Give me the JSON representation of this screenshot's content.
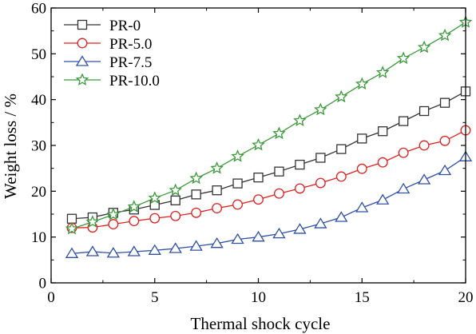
{
  "chart_data": {
    "type": "line",
    "xlabel": "Thermal shock cycle",
    "ylabel": "Weight loss / %",
    "xlim": [
      0,
      20
    ],
    "ylim": [
      0,
      60
    ],
    "xticks": [
      "0",
      "5",
      "10",
      "15",
      "20"
    ],
    "yticks": [
      "0",
      "10",
      "20",
      "30",
      "40",
      "50",
      "60"
    ],
    "grid": false,
    "legend_position": "top-left",
    "x": [
      1,
      2,
      3,
      4,
      5,
      6,
      7,
      8,
      9,
      10,
      11,
      12,
      13,
      14,
      15,
      16,
      17,
      18,
      19,
      20
    ],
    "series": [
      {
        "name": "PR-0",
        "color": "#333333",
        "marker": "square",
        "values": [
          14.0,
          14.3,
          15.3,
          16.0,
          17.0,
          18.0,
          19.3,
          20.2,
          21.7,
          23.0,
          24.3,
          25.8,
          27.3,
          29.2,
          31.5,
          33.1,
          35.3,
          37.5,
          39.3,
          41.8
        ]
      },
      {
        "name": "PR-5.0",
        "color": "#e02020",
        "marker": "circle",
        "values": [
          12.0,
          12.1,
          12.8,
          13.5,
          14.1,
          14.6,
          15.3,
          16.3,
          17.1,
          18.2,
          19.5,
          20.6,
          21.8,
          23.2,
          24.9,
          26.3,
          28.4,
          30.0,
          31.0,
          33.3
        ]
      },
      {
        "name": "PR-7.5",
        "color": "#3050a8",
        "marker": "triangle",
        "values": [
          6.4,
          6.8,
          6.5,
          6.8,
          7.1,
          7.5,
          8.0,
          8.6,
          9.5,
          10.0,
          10.7,
          11.7,
          12.9,
          14.3,
          16.4,
          18.1,
          20.5,
          22.5,
          24.5,
          27.5
        ]
      },
      {
        "name": "PR-10.0",
        "color": "#3a9a3a",
        "marker": "star",
        "values": [
          11.8,
          13.3,
          14.9,
          16.6,
          18.5,
          20.2,
          22.8,
          25.0,
          27.6,
          30.1,
          32.6,
          35.4,
          37.8,
          40.6,
          43.4,
          45.9,
          49.0,
          51.4,
          54.0,
          56.9
        ]
      }
    ]
  }
}
